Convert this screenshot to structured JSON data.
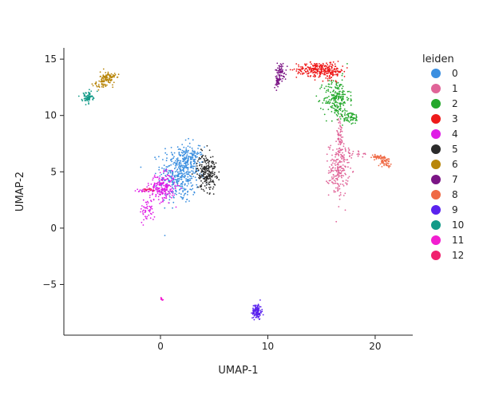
{
  "chart_data": {
    "type": "scatter",
    "xlabel": "UMAP-1",
    "ylabel": "UMAP-2",
    "xlim": [
      -9,
      23.5
    ],
    "ylim": [
      -9.5,
      16
    ],
    "x_ticks": [
      0,
      10,
      20
    ],
    "x_tick_labels": [
      "0",
      "10",
      "20"
    ],
    "y_ticks": [
      -5,
      0,
      5,
      10,
      15
    ],
    "y_tick_labels": [
      "−5",
      "0",
      "5",
      "10",
      "15"
    ],
    "grid": false,
    "legend": {
      "title": "leiden",
      "placement": "right"
    },
    "series": [
      {
        "name": "0",
        "color": "#3b8fe0",
        "clusters": [
          {
            "cx": 1.8,
            "cy": 4.8,
            "sx": 0.9,
            "sy": 1.3,
            "n": 380
          },
          {
            "cx": 2.8,
            "cy": 6.0,
            "sx": 0.6,
            "sy": 0.6,
            "n": 120
          }
        ]
      },
      {
        "name": "1",
        "color": "#e06498",
        "clusters": [
          {
            "cx": 16.6,
            "cy": 5.2,
            "sx": 0.45,
            "sy": 1.2,
            "n": 200
          },
          {
            "cx": 16.7,
            "cy": 8.2,
            "sx": 0.2,
            "sy": 0.8,
            "n": 50
          },
          {
            "cx": 18.2,
            "cy": 6.6,
            "sx": 0.6,
            "sy": 0.15,
            "n": 25
          }
        ]
      },
      {
        "name": "2",
        "color": "#24a82c",
        "clusters": [
          {
            "cx": 16.4,
            "cy": 11.5,
            "sx": 0.6,
            "sy": 0.9,
            "n": 220
          },
          {
            "cx": 17.6,
            "cy": 9.8,
            "sx": 0.5,
            "sy": 0.3,
            "n": 60
          }
        ]
      },
      {
        "name": "3",
        "color": "#ee1a1a",
        "clusters": [
          {
            "cx": 14.5,
            "cy": 14.1,
            "sx": 0.9,
            "sy": 0.3,
            "n": 200
          },
          {
            "cx": 16.0,
            "cy": 13.9,
            "sx": 0.5,
            "sy": 0.35,
            "n": 100
          }
        ]
      },
      {
        "name": "4",
        "color": "#df1ee6",
        "clusters": [
          {
            "cx": 0.2,
            "cy": 3.6,
            "sx": 0.6,
            "sy": 0.6,
            "n": 220
          },
          {
            "cx": -1.2,
            "cy": 1.6,
            "sx": 0.35,
            "sy": 0.5,
            "n": 50
          },
          {
            "cx": -1.6,
            "cy": 3.3,
            "sx": 0.4,
            "sy": 0.1,
            "n": 15
          }
        ]
      },
      {
        "name": "5",
        "color": "#2b2b2b",
        "clusters": [
          {
            "cx": 4.3,
            "cy": 5.0,
            "sx": 0.45,
            "sy": 0.8,
            "n": 220
          }
        ]
      },
      {
        "name": "6",
        "color": "#b8860b",
        "clusters": [
          {
            "cx": -4.9,
            "cy": 13.3,
            "sx": 0.35,
            "sy": 0.3,
            "n": 110
          },
          {
            "cx": -5.8,
            "cy": 12.7,
            "sx": 0.3,
            "sy": 0.15,
            "n": 20
          }
        ]
      },
      {
        "name": "7",
        "color": "#7b1585",
        "clusters": [
          {
            "cx": 11.2,
            "cy": 13.9,
            "sx": 0.25,
            "sy": 0.4,
            "n": 70
          },
          {
            "cx": 10.9,
            "cy": 12.9,
            "sx": 0.15,
            "sy": 0.25,
            "n": 30
          }
        ]
      },
      {
        "name": "8",
        "color": "#ef6a45",
        "clusters": [
          {
            "cx": 20.2,
            "cy": 6.3,
            "sx": 0.5,
            "sy": 0.1,
            "n": 40
          },
          {
            "cx": 21.0,
            "cy": 5.9,
            "sx": 0.25,
            "sy": 0.2,
            "n": 50
          }
        ]
      },
      {
        "name": "9",
        "color": "#5a22ee",
        "clusters": [
          {
            "cx": 9.0,
            "cy": -7.4,
            "sx": 0.22,
            "sy": 0.35,
            "n": 120
          }
        ]
      },
      {
        "name": "10",
        "color": "#129a88",
        "clusters": [
          {
            "cx": -6.8,
            "cy": 11.6,
            "sx": 0.25,
            "sy": 0.25,
            "n": 70
          }
        ]
      },
      {
        "name": "11",
        "color": "#f21ed0",
        "clusters": [
          {
            "cx": 0.1,
            "cy": -6.3,
            "sx": 0.1,
            "sy": 0.1,
            "n": 10
          }
        ]
      },
      {
        "name": "12",
        "color": "#f0206e",
        "clusters": [
          {
            "cx": -1.2,
            "cy": 3.4,
            "sx": 0.5,
            "sy": 0.06,
            "n": 20
          }
        ]
      }
    ]
  }
}
